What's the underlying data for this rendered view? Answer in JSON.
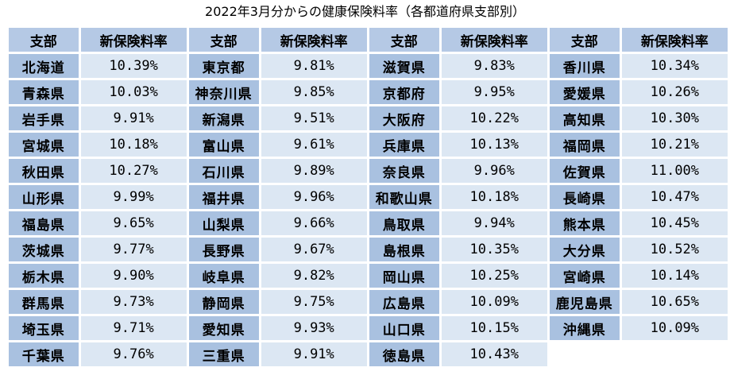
{
  "title": "2022年3月分からの健康保険料率（各都道府県支部別）",
  "headers": [
    "支部",
    "新保険料率",
    "支部",
    "新保険料率",
    "支部",
    "新保険料率",
    "支部",
    "新保険料率"
  ],
  "columns": [
    [
      {
        "pref": "北海道",
        "rate": "10.39%"
      },
      {
        "pref": "青森県",
        "rate": "10.03%"
      },
      {
        "pref": "岩手県",
        "rate": "9.91%"
      },
      {
        "pref": "宮城県",
        "rate": "10.18%"
      },
      {
        "pref": "秋田県",
        "rate": "10.27%"
      },
      {
        "pref": "山形県",
        "rate": "9.99%"
      },
      {
        "pref": "福島県",
        "rate": "9.65%"
      },
      {
        "pref": "茨城県",
        "rate": "9.77%"
      },
      {
        "pref": "栃木県",
        "rate": "9.90%"
      },
      {
        "pref": "群馬県",
        "rate": "9.73%"
      },
      {
        "pref": "埼玉県",
        "rate": "9.71%"
      },
      {
        "pref": "千葉県",
        "rate": "9.76%"
      }
    ],
    [
      {
        "pref": "東京都",
        "rate": "9.81%"
      },
      {
        "pref": "神奈川県",
        "rate": "9.85%"
      },
      {
        "pref": "新潟県",
        "rate": "9.51%"
      },
      {
        "pref": "富山県",
        "rate": "9.61%"
      },
      {
        "pref": "石川県",
        "rate": "9.89%"
      },
      {
        "pref": "福井県",
        "rate": "9.96%"
      },
      {
        "pref": "山梨県",
        "rate": "9.66%"
      },
      {
        "pref": "長野県",
        "rate": "9.67%"
      },
      {
        "pref": "岐阜県",
        "rate": "9.82%"
      },
      {
        "pref": "静岡県",
        "rate": "9.75%"
      },
      {
        "pref": "愛知県",
        "rate": "9.93%"
      },
      {
        "pref": "三重県",
        "rate": "9.91%"
      }
    ],
    [
      {
        "pref": "滋賀県",
        "rate": "9.83%"
      },
      {
        "pref": "京都府",
        "rate": "9.95%"
      },
      {
        "pref": "大阪府",
        "rate": "10.22%"
      },
      {
        "pref": "兵庫県",
        "rate": "10.13%"
      },
      {
        "pref": "奈良県",
        "rate": "9.96%"
      },
      {
        "pref": "和歌山県",
        "rate": "10.18%"
      },
      {
        "pref": "鳥取県",
        "rate": "9.94%"
      },
      {
        "pref": "島根県",
        "rate": "10.35%"
      },
      {
        "pref": "岡山県",
        "rate": "10.25%"
      },
      {
        "pref": "広島県",
        "rate": "10.09%"
      },
      {
        "pref": "山口県",
        "rate": "10.15%"
      },
      {
        "pref": "徳島県",
        "rate": "10.43%"
      }
    ],
    [
      {
        "pref": "香川県",
        "rate": "10.34%"
      },
      {
        "pref": "愛媛県",
        "rate": "10.26%"
      },
      {
        "pref": "高知県",
        "rate": "10.30%"
      },
      {
        "pref": "福岡県",
        "rate": "10.21%"
      },
      {
        "pref": "佐賀県",
        "rate": "11.00%"
      },
      {
        "pref": "長崎県",
        "rate": "10.47%"
      },
      {
        "pref": "熊本県",
        "rate": "10.45%"
      },
      {
        "pref": "大分県",
        "rate": "10.52%"
      },
      {
        "pref": "宮崎県",
        "rate": "10.14%"
      },
      {
        "pref": "鹿児島県",
        "rate": "10.65%"
      },
      {
        "pref": "沖縄県",
        "rate": "10.09%"
      }
    ]
  ],
  "colors": {
    "header_bg": "#b5c9e5",
    "pref_bg": "#a9c1e0",
    "rate_bg": "#dce7f3"
  }
}
